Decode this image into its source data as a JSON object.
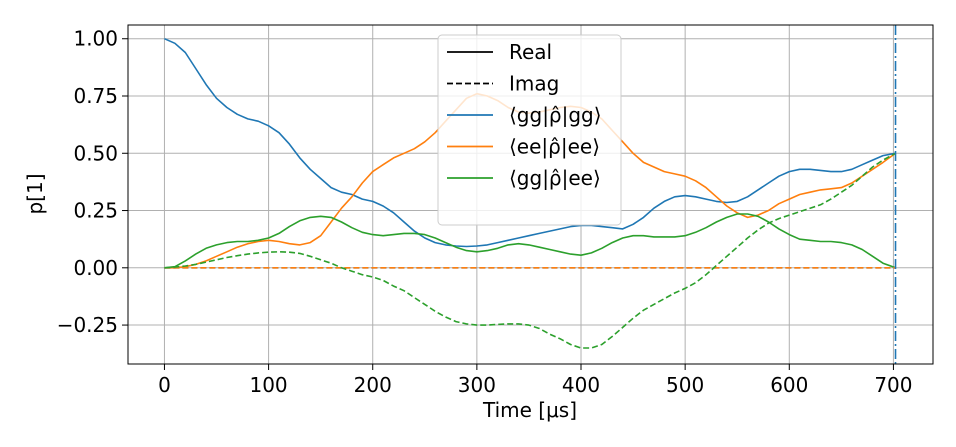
{
  "chart_data": {
    "type": "line",
    "xlabel": "Time [μs]",
    "ylabel": "p[1]",
    "xlim": [
      -35,
      738
    ],
    "ylim": [
      -0.42,
      1.06
    ],
    "xticks": [
      0,
      100,
      200,
      300,
      400,
      500,
      600,
      700
    ],
    "yticks": [
      -0.25,
      0.0,
      0.25,
      0.5,
      0.75,
      1.0
    ],
    "xtick_labels": [
      "0",
      "100",
      "200",
      "300",
      "400",
      "500",
      "600",
      "700"
    ],
    "ytick_labels": [
      "−0.25",
      "0.00",
      "0.25",
      "0.50",
      "0.75",
      "1.00"
    ],
    "grid": true,
    "legend_position": "top-center",
    "legend": [
      {
        "label": "Real",
        "color": "#000000",
        "style": "solid"
      },
      {
        "label": "Imag",
        "color": "#000000",
        "style": "dashed"
      },
      {
        "label": "⟨gg|ρ̂|gg⟩",
        "color": "#1f77b4",
        "style": "solid"
      },
      {
        "label": "⟨ee|ρ̂|ee⟩",
        "color": "#ff7f0e",
        "style": "solid"
      },
      {
        "label": "⟨gg|ρ̂|ee⟩",
        "color": "#2ca02c",
        "style": "solid"
      }
    ],
    "vline": {
      "x": 702,
      "color": "#1f77b4",
      "style": "dashdot"
    },
    "series": [
      {
        "name": "⟨gg|ρ̂|gg⟩",
        "part": "real",
        "color": "#1f77b4",
        "style": "solid",
        "x": [
          0,
          10,
          20,
          30,
          40,
          50,
          60,
          70,
          80,
          90,
          100,
          110,
          120,
          130,
          140,
          150,
          160,
          170,
          180,
          190,
          200,
          210,
          220,
          230,
          240,
          250,
          260,
          270,
          280,
          290,
          300,
          310,
          320,
          330,
          340,
          350,
          360,
          370,
          380,
          390,
          400,
          410,
          420,
          430,
          440,
          450,
          460,
          470,
          480,
          490,
          500,
          510,
          520,
          530,
          540,
          550,
          560,
          570,
          580,
          590,
          600,
          610,
          620,
          630,
          640,
          650,
          660,
          670,
          680,
          690,
          702
        ],
        "y": [
          1.0,
          0.98,
          0.94,
          0.87,
          0.8,
          0.74,
          0.7,
          0.67,
          0.65,
          0.64,
          0.62,
          0.59,
          0.54,
          0.48,
          0.43,
          0.39,
          0.35,
          0.33,
          0.32,
          0.3,
          0.29,
          0.27,
          0.24,
          0.2,
          0.16,
          0.13,
          0.11,
          0.1,
          0.095,
          0.093,
          0.095,
          0.1,
          0.11,
          0.12,
          0.13,
          0.14,
          0.15,
          0.16,
          0.17,
          0.18,
          0.185,
          0.185,
          0.18,
          0.175,
          0.17,
          0.19,
          0.22,
          0.26,
          0.29,
          0.31,
          0.315,
          0.31,
          0.3,
          0.29,
          0.285,
          0.29,
          0.31,
          0.34,
          0.37,
          0.4,
          0.42,
          0.43,
          0.43,
          0.425,
          0.42,
          0.42,
          0.43,
          0.45,
          0.47,
          0.49,
          0.5
        ]
      },
      {
        "name": "⟨ee|ρ̂|ee⟩",
        "part": "real",
        "color": "#ff7f0e",
        "style": "solid",
        "x": [
          0,
          10,
          20,
          30,
          40,
          50,
          60,
          70,
          80,
          90,
          100,
          110,
          120,
          130,
          140,
          150,
          160,
          170,
          180,
          190,
          200,
          210,
          220,
          230,
          240,
          250,
          260,
          270,
          280,
          290,
          300,
          310,
          320,
          330,
          340,
          350,
          360,
          370,
          380,
          390,
          400,
          410,
          420,
          430,
          440,
          450,
          460,
          470,
          480,
          490,
          500,
          510,
          520,
          530,
          540,
          550,
          560,
          570,
          580,
          590,
          600,
          610,
          620,
          630,
          640,
          650,
          660,
          670,
          680,
          690,
          702
        ],
        "y": [
          0.0,
          0.0,
          0.005,
          0.015,
          0.03,
          0.05,
          0.07,
          0.09,
          0.105,
          0.115,
          0.12,
          0.115,
          0.105,
          0.1,
          0.11,
          0.14,
          0.2,
          0.26,
          0.31,
          0.37,
          0.42,
          0.45,
          0.48,
          0.5,
          0.52,
          0.55,
          0.59,
          0.64,
          0.69,
          0.74,
          0.76,
          0.75,
          0.73,
          0.7,
          0.68,
          0.675,
          0.68,
          0.69,
          0.7,
          0.705,
          0.7,
          0.68,
          0.65,
          0.6,
          0.55,
          0.5,
          0.46,
          0.44,
          0.42,
          0.41,
          0.4,
          0.38,
          0.35,
          0.31,
          0.27,
          0.24,
          0.22,
          0.23,
          0.25,
          0.28,
          0.3,
          0.32,
          0.33,
          0.34,
          0.345,
          0.35,
          0.37,
          0.4,
          0.43,
          0.46,
          0.5
        ]
      },
      {
        "name": "⟨gg|ρ̂|ee⟩",
        "part": "real",
        "color": "#2ca02c",
        "style": "solid",
        "x": [
          0,
          10,
          20,
          30,
          40,
          50,
          60,
          70,
          80,
          90,
          100,
          110,
          120,
          130,
          140,
          150,
          160,
          170,
          180,
          190,
          200,
          210,
          220,
          230,
          240,
          250,
          260,
          270,
          280,
          290,
          300,
          310,
          320,
          330,
          340,
          350,
          360,
          370,
          380,
          390,
          400,
          410,
          420,
          430,
          440,
          450,
          460,
          470,
          480,
          490,
          500,
          510,
          520,
          530,
          540,
          550,
          560,
          570,
          580,
          590,
          600,
          610,
          620,
          630,
          640,
          650,
          660,
          670,
          680,
          690,
          702
        ],
        "y": [
          0.0,
          0.005,
          0.03,
          0.06,
          0.085,
          0.1,
          0.11,
          0.115,
          0.115,
          0.12,
          0.13,
          0.15,
          0.18,
          0.205,
          0.22,
          0.225,
          0.22,
          0.2,
          0.175,
          0.155,
          0.145,
          0.14,
          0.145,
          0.15,
          0.15,
          0.145,
          0.13,
          0.11,
          0.09,
          0.075,
          0.07,
          0.075,
          0.085,
          0.1,
          0.105,
          0.1,
          0.09,
          0.08,
          0.07,
          0.06,
          0.055,
          0.065,
          0.085,
          0.11,
          0.13,
          0.14,
          0.14,
          0.135,
          0.135,
          0.135,
          0.14,
          0.155,
          0.175,
          0.2,
          0.22,
          0.235,
          0.235,
          0.225,
          0.2,
          0.17,
          0.145,
          0.125,
          0.12,
          0.115,
          0.115,
          0.11,
          0.1,
          0.08,
          0.05,
          0.02,
          0.0
        ]
      },
      {
        "name": "⟨gg|ρ̂|gg⟩",
        "part": "imag",
        "color": "#1f77b4",
        "style": "dashed",
        "x": [
          0,
          702
        ],
        "y": [
          0.0,
          0.0
        ]
      },
      {
        "name": "⟨ee|ρ̂|ee⟩",
        "part": "imag",
        "color": "#ff7f0e",
        "style": "dashed",
        "x": [
          0,
          702
        ],
        "y": [
          0.0,
          0.0
        ]
      },
      {
        "name": "⟨gg|ρ̂|ee⟩",
        "part": "imag",
        "color": "#2ca02c",
        "style": "dashed",
        "x": [
          0,
          10,
          20,
          30,
          40,
          50,
          60,
          70,
          80,
          90,
          100,
          110,
          120,
          130,
          140,
          150,
          160,
          170,
          180,
          190,
          200,
          210,
          220,
          230,
          240,
          250,
          260,
          270,
          280,
          290,
          300,
          310,
          320,
          330,
          340,
          350,
          360,
          370,
          380,
          390,
          400,
          410,
          420,
          430,
          440,
          450,
          460,
          470,
          480,
          490,
          500,
          510,
          520,
          530,
          540,
          550,
          560,
          570,
          580,
          590,
          600,
          610,
          620,
          630,
          640,
          650,
          660,
          670,
          680,
          690,
          702
        ],
        "y": [
          0.0,
          0.003,
          0.008,
          0.015,
          0.025,
          0.035,
          0.045,
          0.053,
          0.06,
          0.065,
          0.068,
          0.07,
          0.068,
          0.063,
          0.05,
          0.035,
          0.02,
          0.0,
          -0.015,
          -0.03,
          -0.04,
          -0.055,
          -0.08,
          -0.1,
          -0.13,
          -0.16,
          -0.19,
          -0.215,
          -0.235,
          -0.245,
          -0.25,
          -0.25,
          -0.247,
          -0.245,
          -0.245,
          -0.25,
          -0.265,
          -0.29,
          -0.31,
          -0.335,
          -0.35,
          -0.35,
          -0.335,
          -0.3,
          -0.26,
          -0.22,
          -0.185,
          -0.16,
          -0.135,
          -0.11,
          -0.09,
          -0.065,
          -0.03,
          0.01,
          0.05,
          0.09,
          0.13,
          0.165,
          0.195,
          0.215,
          0.23,
          0.245,
          0.26,
          0.275,
          0.3,
          0.33,
          0.36,
          0.4,
          0.44,
          0.47,
          0.5
        ]
      }
    ]
  }
}
